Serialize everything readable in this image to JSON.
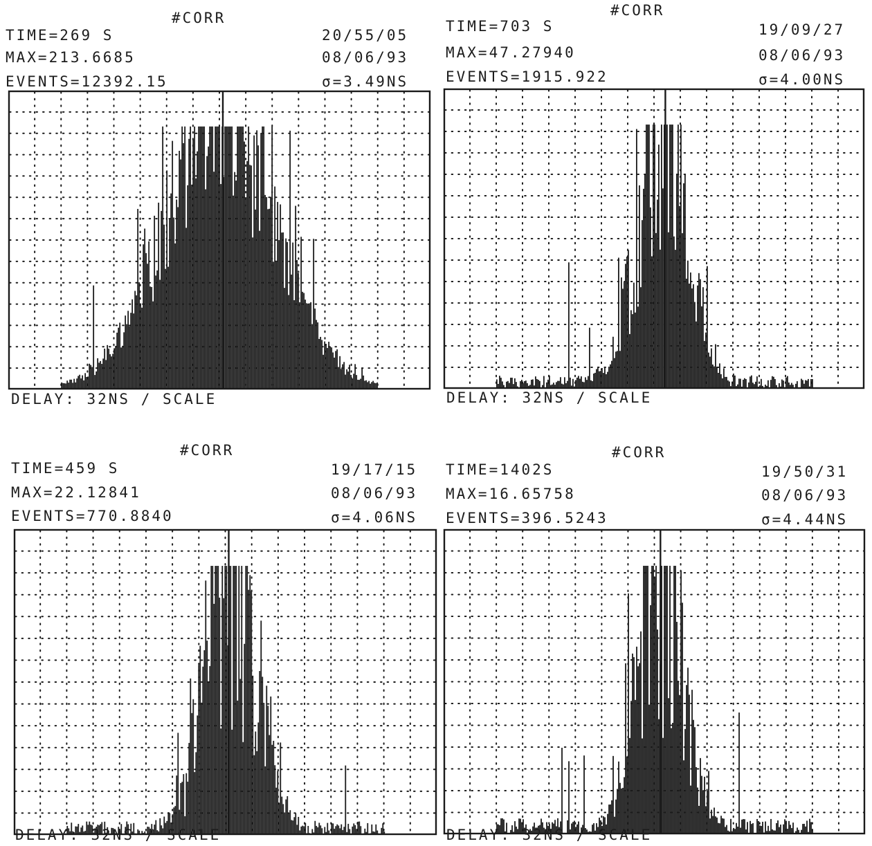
{
  "panels": [
    {
      "title": "#CORR",
      "time": "TIME=269 S",
      "max": "MAX=213.6685",
      "events": "EVENTS=12392.15",
      "clock": "20/55/05",
      "date": "08/06/93",
      "sigma": "σ=3.49NS",
      "xlabel": "DELAY: 32NS / SCALE"
    },
    {
      "title": "#CORR",
      "time": "TIME=703 S",
      "max": "MAX=47.27940",
      "events": "EVENTS=1915.922",
      "clock": "19/09/27",
      "date": "08/06/93",
      "sigma": "σ=4.00NS",
      "xlabel": "DELAY: 32NS / SCALE"
    },
    {
      "title": "#CORR",
      "time": "TIME=459 S",
      "max": "MAX=22.12841",
      "events": "EVENTS=770.8840",
      "clock": "19/17/15",
      "date": "08/06/93",
      "sigma": "σ=4.06NS",
      "xlabel": "DELAY: 32NS / SCALE"
    },
    {
      "title": "#CORR",
      "time": "TIME=1402S",
      "max": "MAX=16.65758",
      "events": "EVENTS=396.5243",
      "clock": "19/50/31",
      "date": "08/06/93",
      "sigma": "σ=4.44NS",
      "xlabel": "DELAY: 32NS / SCALE"
    }
  ],
  "chart_data": [
    {
      "type": "bar",
      "title": "#CORR",
      "xlabel": "DELAY: 32NS / SCALE",
      "ylabel": "",
      "grid": true,
      "x_divisions": 16,
      "y_divisions": 14,
      "ylim": [
        0,
        213.6685
      ],
      "peak_x_division": 8.1,
      "histogram_extent_divisions": [
        2.0,
        14.0
      ],
      "distribution": {
        "center_division": 8.0,
        "width_divisions": 2.1,
        "noise": 0.32,
        "noise_floor": 0.01
      },
      "max": 213.6685,
      "events": 12392.15,
      "sigma_ns": 3.49,
      "time_s": 269
    },
    {
      "type": "bar",
      "title": "#CORR",
      "xlabel": "DELAY: 32NS / SCALE",
      "ylabel": "",
      "grid": true,
      "x_divisions": 16,
      "y_divisions": 14,
      "ylim": [
        0,
        47.2794
      ],
      "peak_x_division": 8.4,
      "histogram_extent_divisions": [
        2.0,
        14.0
      ],
      "distribution": {
        "center_division": 8.3,
        "width_divisions": 0.9,
        "noise": 0.55,
        "noise_floor": 0.05
      },
      "max": 47.2794,
      "events": 1915.922,
      "sigma_ns": 4.0,
      "time_s": 703
    },
    {
      "type": "bar",
      "title": "#CORR",
      "xlabel": "DELAY: 32NS / SCALE",
      "ylabel": "",
      "grid": true,
      "x_divisions": 16,
      "y_divisions": 14,
      "ylim": [
        0,
        22.12841
      ],
      "peak_x_division": 8.1,
      "histogram_extent_divisions": [
        2.0,
        14.0
      ],
      "distribution": {
        "center_division": 8.2,
        "width_divisions": 0.9,
        "noise": 0.7,
        "noise_floor": 0.05
      },
      "max": 22.12841,
      "events": 770.884,
      "sigma_ns": 4.06,
      "time_s": 459
    },
    {
      "type": "bar",
      "title": "#CORR",
      "xlabel": "DELAY: 32NS / SCALE",
      "ylabel": "",
      "grid": true,
      "x_divisions": 16,
      "y_divisions": 14,
      "ylim": [
        0,
        16.65758
      ],
      "peak_x_division": 8.2,
      "histogram_extent_divisions": [
        2.0,
        14.0
      ],
      "distribution": {
        "center_division": 8.2,
        "width_divisions": 0.8,
        "noise": 0.7,
        "noise_floor": 0.06
      },
      "max": 16.65758,
      "events": 396.5243,
      "sigma_ns": 4.44,
      "time_s": 1402
    }
  ],
  "colors": {
    "ink": "#1a1a1a",
    "grid": "#1a1a1a",
    "background": "#ffffff"
  }
}
